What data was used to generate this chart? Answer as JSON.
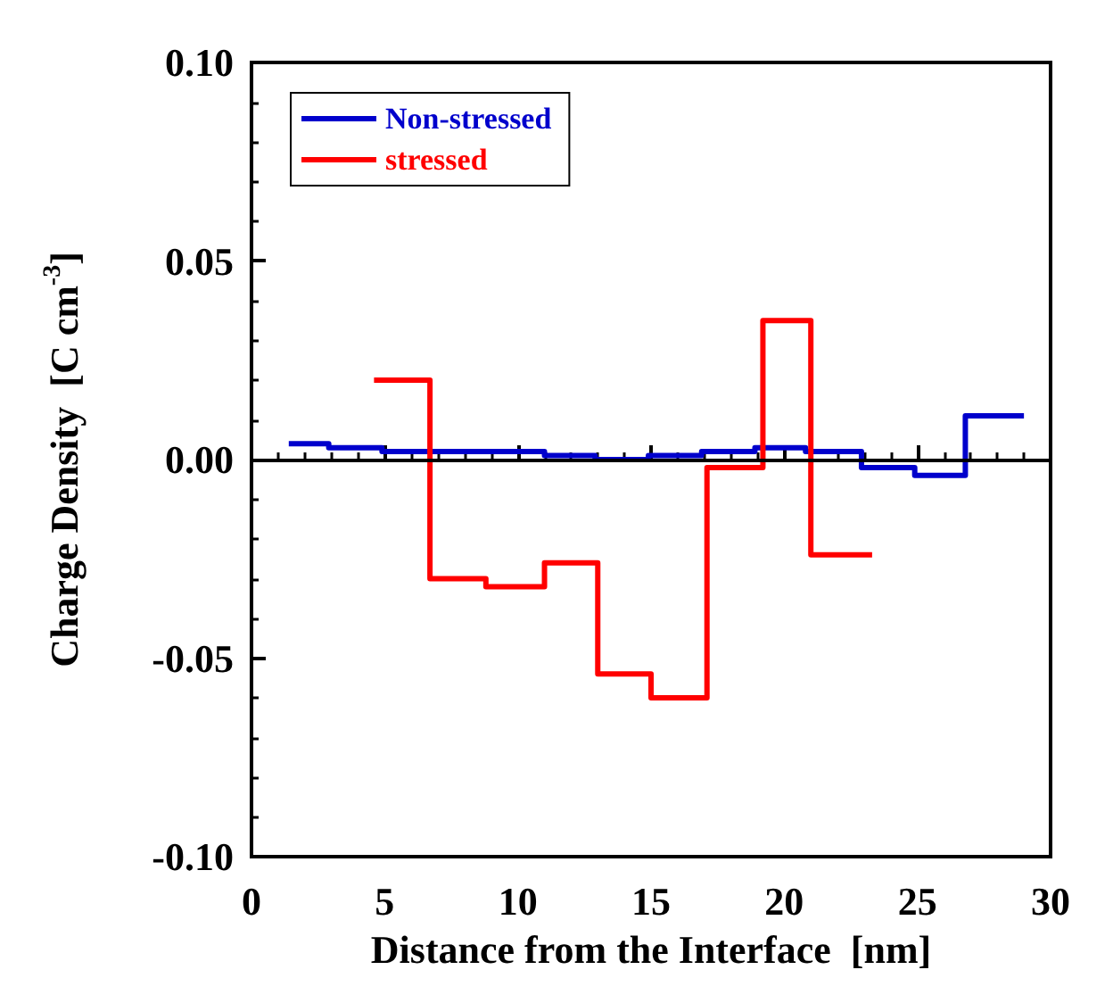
{
  "chart_data": {
    "type": "step",
    "xlabel": "Distance from the Interface  [nm]",
    "ylabel": "Charge Density  [C cm$^{-3}$]",
    "xlim": [
      0,
      30
    ],
    "xticks": [
      0,
      5,
      10,
      15,
      20,
      25,
      30
    ],
    "ylim": [
      -0.1,
      0.1
    ],
    "yticks": [
      {
        "value": -0.1,
        "label": "-0.10"
      },
      {
        "value": -0.05,
        "label": "-0.05"
      },
      {
        "value": 0,
        "label": "0.00"
      },
      {
        "value": 0.05,
        "label": "0.05"
      },
      {
        "value": 0.1,
        "label": "0.10"
      }
    ],
    "series": [
      {
        "name": "Non-stressed",
        "color": "#0000cc",
        "x": [
          1.4,
          2.9,
          4.9,
          6.9,
          9.0,
          11.0,
          12.9,
          14.9,
          16.9,
          18.9,
          20.8,
          22.9,
          24.9,
          26.8,
          29.0
        ],
        "values": [
          0.004,
          0.003,
          0.002,
          0.002,
          0.002,
          0.001,
          0.0,
          0.001,
          0.002,
          0.003,
          0.002,
          -0.002,
          -0.004,
          0.011,
          0.011
        ]
      },
      {
        "name": "stressed",
        "color": "#ff0000",
        "x": [
          4.6,
          6.7,
          8.8,
          11.0,
          13.0,
          15.0,
          17.1,
          19.2,
          21.0,
          23.3
        ],
        "values": [
          0.02,
          -0.03,
          -0.032,
          -0.026,
          -0.054,
          -0.06,
          -0.002,
          0.035,
          -0.024,
          -0.024
        ]
      }
    ],
    "ref_lines": [
      {
        "axis": "y",
        "value": 0,
        "color": "#000000"
      }
    ],
    "legend": "top left",
    "grid": false
  }
}
